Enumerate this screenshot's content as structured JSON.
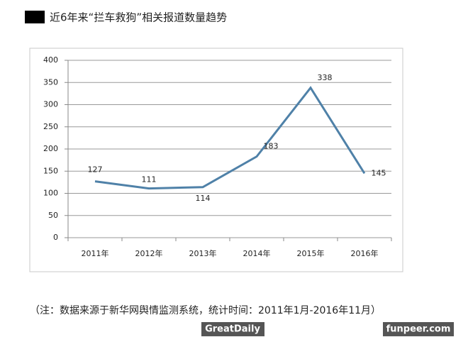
{
  "chart_data": {
    "type": "line",
    "title": "近6年来“拦车救狗”相关报道数量趋势",
    "categories": [
      "2011年",
      "2012年",
      "2013年",
      "2014年",
      "2015年",
      "2016年"
    ],
    "values": [
      127,
      111,
      114,
      183,
      338,
      145
    ],
    "color": "#4f81a8",
    "ylim": [
      0,
      400
    ],
    "yticks": [
      0,
      50,
      100,
      150,
      200,
      250,
      300,
      350,
      400
    ],
    "grid": true,
    "note": "（注：数据来源于新华网舆情监测系统，统计时间：2011年1月-2016年11月）",
    "watermarks": [
      "GreatDaily",
      "funpeer.com"
    ]
  }
}
